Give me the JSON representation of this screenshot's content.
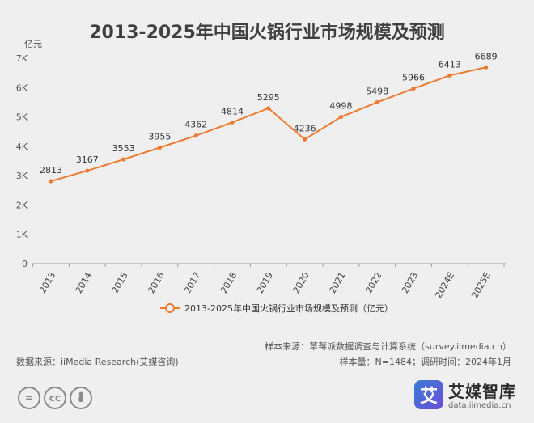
{
  "chart_data": {
    "type": "line",
    "title": "2013-2025年中国火锅行业市场规模及预测",
    "ylabel": "亿元",
    "categories": [
      "2013",
      "2014",
      "2015",
      "2016",
      "2017",
      "2018",
      "2019",
      "2020",
      "2021",
      "2022",
      "2023",
      "2024E",
      "2025E"
    ],
    "series": [
      {
        "name": "2013-2025年中国火锅行业市场规模及预测（亿元）",
        "values": [
          2813,
          3167,
          3553,
          3955,
          4362,
          4814,
          5295,
          4236,
          4998,
          5498,
          5966,
          6413,
          6689
        ]
      }
    ],
    "ylim": [
      0,
      7000
    ],
    "yticks": [
      0,
      1000,
      2000,
      3000,
      4000,
      5000,
      6000,
      7000
    ],
    "ytick_labels": [
      "0",
      "1K",
      "2K",
      "3K",
      "4K",
      "5K",
      "6K",
      "7K"
    ],
    "grid": false,
    "legend_position": "bottom",
    "color": "#ee7a30"
  },
  "source": {
    "sample_source": "样本来源：草莓派数据调查与计算系统（survey.iimedia.cn）",
    "sample_info": "样本量：N=1484；调研时间：2024年1月",
    "data_source": "数据来源：iiMedia Research(艾媒咨询)"
  },
  "brand": {
    "logo_char": "艾",
    "name": "艾媒智库",
    "url": "data.iimedia.cn"
  },
  "license_icons": [
    "=",
    "cc",
    "person-icon"
  ]
}
